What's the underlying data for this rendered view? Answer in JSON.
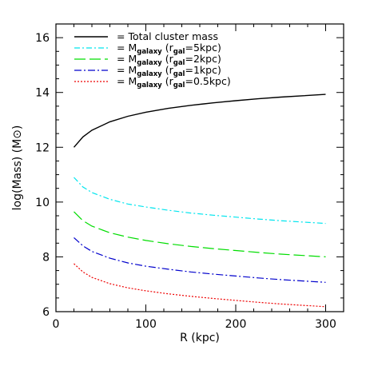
{
  "chart_data": {
    "type": "line",
    "xlabel": "R (kpc)",
    "ylabel": "log(Mass) (M",
    "ylabel_symbol": "⊙",
    "ylabel_close": ")",
    "xlim": [
      0,
      320
    ],
    "ylim": [
      6,
      16.5
    ],
    "x_ticks": [
      0,
      100,
      200,
      300
    ],
    "y_ticks": [
      6,
      8,
      10,
      12,
      14,
      16
    ],
    "x_tick_labels": [
      "0",
      "100",
      "200",
      "300"
    ],
    "y_tick_labels": [
      "6",
      "8",
      "10",
      "12",
      "14",
      "16"
    ],
    "grid": false,
    "legend_placement": "top-left",
    "series": [
      {
        "name": "= Total cluster mass",
        "legend": {
          "prefix": "= Total cluster mass",
          "main": "",
          "sub": "",
          "mid": "",
          "sub2": "",
          "tail": ""
        },
        "color": "#000000",
        "dash": "",
        "x": [
          20,
          30,
          40,
          60,
          80,
          100,
          125,
          150,
          175,
          200,
          225,
          250,
          275,
          300
        ],
        "y": [
          12.0,
          12.38,
          12.62,
          12.93,
          13.13,
          13.28,
          13.42,
          13.53,
          13.62,
          13.7,
          13.77,
          13.83,
          13.88,
          13.93
        ]
      },
      {
        "name": "= M galaxy (r gal=5kpc)",
        "legend": {
          "prefix": "= M",
          "main": "",
          "sub": "galaxy",
          "mid": " (r",
          "sub2": "gal",
          "tail": "=5kpc)"
        },
        "color": "#00e5ee",
        "dash": "7,3,2,3",
        "x": [
          20,
          30,
          40,
          60,
          80,
          100,
          125,
          150,
          175,
          200,
          225,
          250,
          275,
          300
        ],
        "y": [
          10.9,
          10.55,
          10.35,
          10.1,
          9.93,
          9.82,
          9.7,
          9.6,
          9.52,
          9.45,
          9.38,
          9.32,
          9.27,
          9.22
        ]
      },
      {
        "name": "= M galaxy (r gal=2kpc)",
        "legend": {
          "prefix": "= M",
          "main": "",
          "sub": "galaxy",
          "mid": " (r",
          "sub2": "gal",
          "tail": "=2kpc)"
        },
        "color": "#00dd00",
        "dash": "14,5",
        "x": [
          20,
          30,
          40,
          60,
          80,
          100,
          125,
          150,
          175,
          200,
          225,
          250,
          275,
          300
        ],
        "y": [
          9.65,
          9.32,
          9.12,
          8.88,
          8.72,
          8.6,
          8.48,
          8.38,
          8.3,
          8.23,
          8.16,
          8.1,
          8.05,
          8.0
        ]
      },
      {
        "name": "= M galaxy (r gal=1kpc)",
        "legend": {
          "prefix": "= M",
          "main": "",
          "sub": "galaxy",
          "mid": " (r",
          "sub2": "gal",
          "tail": "=1kpc)"
        },
        "color": "#0000cc",
        "dash": "9,3,2,3",
        "x": [
          20,
          30,
          40,
          60,
          80,
          100,
          125,
          150,
          175,
          200,
          225,
          250,
          275,
          300
        ],
        "y": [
          8.7,
          8.4,
          8.2,
          7.95,
          7.78,
          7.66,
          7.55,
          7.45,
          7.37,
          7.3,
          7.23,
          7.17,
          7.12,
          7.07
        ]
      },
      {
        "name": "= M galaxy (r gal=0.5kpc)",
        "legend": {
          "prefix": "= M",
          "main": "",
          "sub": "galaxy",
          "mid": " (r",
          "sub2": "gal",
          "tail": "=0.5kpc)"
        },
        "color": "#ee0000",
        "dash": "2,2",
        "x": [
          20,
          30,
          40,
          60,
          80,
          100,
          125,
          150,
          175,
          200,
          225,
          250,
          275,
          300
        ],
        "y": [
          7.75,
          7.45,
          7.25,
          7.02,
          6.87,
          6.76,
          6.65,
          6.56,
          6.48,
          6.41,
          6.34,
          6.28,
          6.23,
          6.18
        ]
      }
    ]
  }
}
